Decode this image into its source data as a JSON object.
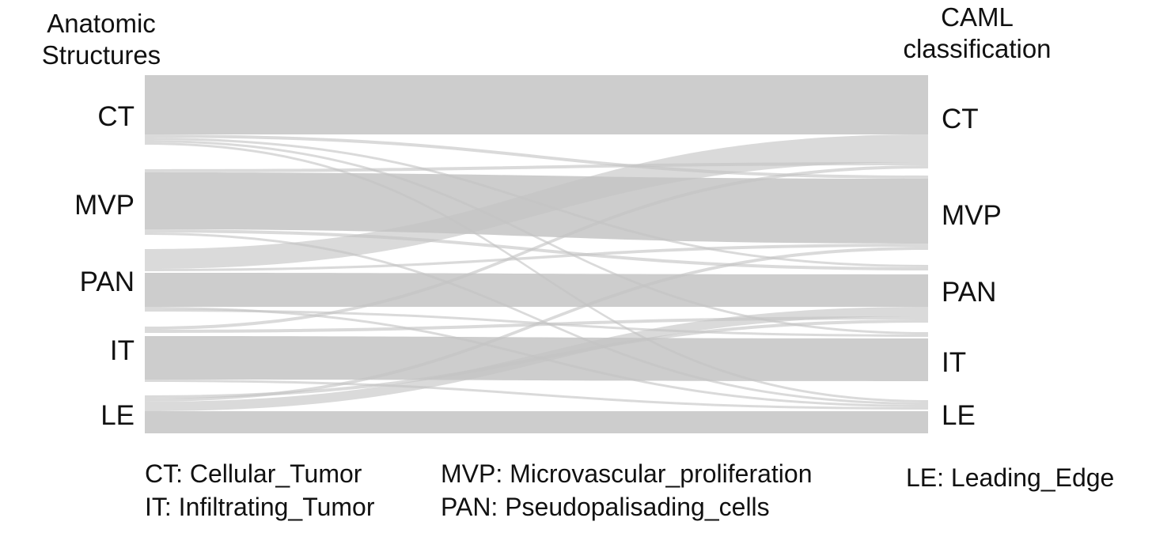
{
  "left_header": [
    "Anatomic",
    "Structures"
  ],
  "right_header": [
    "CAML",
    "classification"
  ],
  "left_categories": [
    "CT",
    "MVP",
    "PAN",
    "IT",
    "LE"
  ],
  "right_categories": [
    "CT",
    "MVP",
    "PAN",
    "IT",
    "LE"
  ],
  "legend": {
    "ct": "CT: Cellular_Tumor",
    "it": "IT: Infiltrating_Tumor",
    "mvp": "MVP: Microvascular_proliferation",
    "pan": "PAN: Pseudopalisading_cells",
    "le": "LE: Leading_Edge"
  },
  "colors": {
    "flow": "#c4c4c4",
    "text": "#111111"
  }
}
